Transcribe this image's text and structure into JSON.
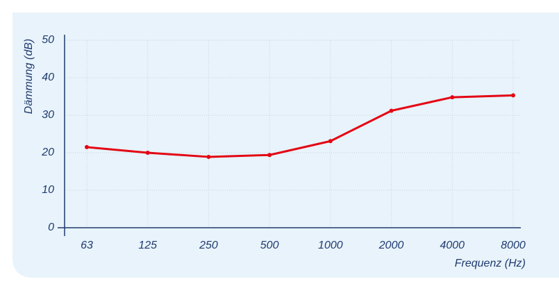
{
  "chart_data": {
    "type": "line",
    "y_label": "Dämmung (dB)",
    "x_label": "Frequenz (Hz)",
    "categories": [
      "63",
      "125",
      "250",
      "500",
      "1000",
      "2000",
      "4000",
      "8000"
    ],
    "series": [
      {
        "color": "#e30613",
        "values": [
          21.5,
          20,
          18.9,
          19.4,
          23.1,
          31.2,
          34.8,
          35.3
        ]
      }
    ],
    "ylim": [
      0,
      50
    ],
    "yticks": [
      0,
      10,
      20,
      30,
      40,
      50
    ],
    "grid": true
  }
}
